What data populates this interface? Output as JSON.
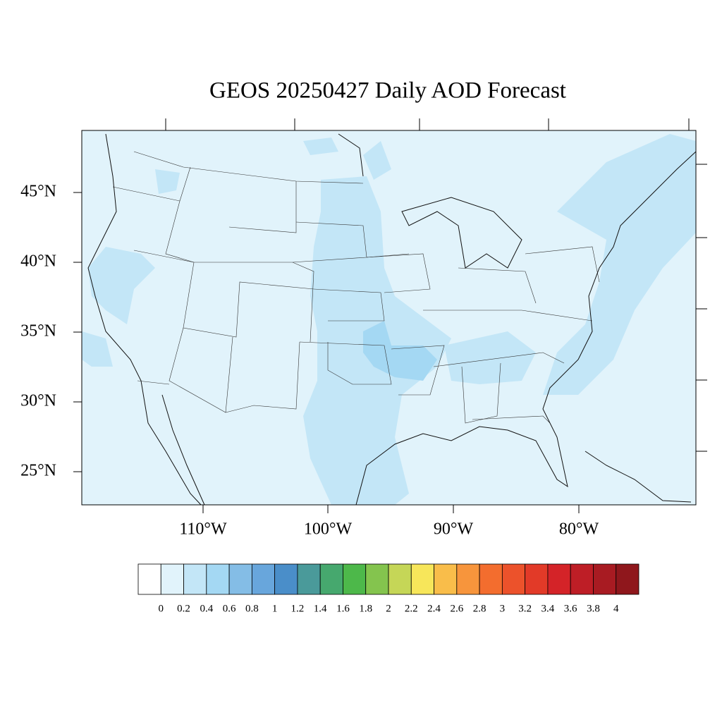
{
  "title": "GEOS 20250427 Daily AOD Forecast",
  "lat_labels": [
    "45°N",
    "40°N",
    "35°N",
    "30°N",
    "25°N"
  ],
  "lon_labels": [
    "110°W",
    "100°W",
    "90°W",
    "80°W"
  ],
  "colorbar": {
    "levels": [
      0,
      0.2,
      0.4,
      0.6,
      0.8,
      1,
      1.2,
      1.4,
      1.6,
      1.8,
      2,
      2.2,
      2.4,
      2.6,
      2.8,
      3,
      3.2,
      3.4,
      3.6,
      3.8,
      4
    ],
    "colors": [
      "#ffffff",
      "#e1f3fb",
      "#c3e6f7",
      "#a4d8f3",
      "#84bde6",
      "#68a6dc",
      "#4a8ec9",
      "#4a9a9a",
      "#46a86e",
      "#4db84a",
      "#84c44e",
      "#c5d657",
      "#f7e65a",
      "#f9bd4a",
      "#f7953c",
      "#f36d2e",
      "#ec522b",
      "#e23a28",
      "#d42328",
      "#be1e26",
      "#a81b22",
      "#8f171c"
    ]
  }
}
